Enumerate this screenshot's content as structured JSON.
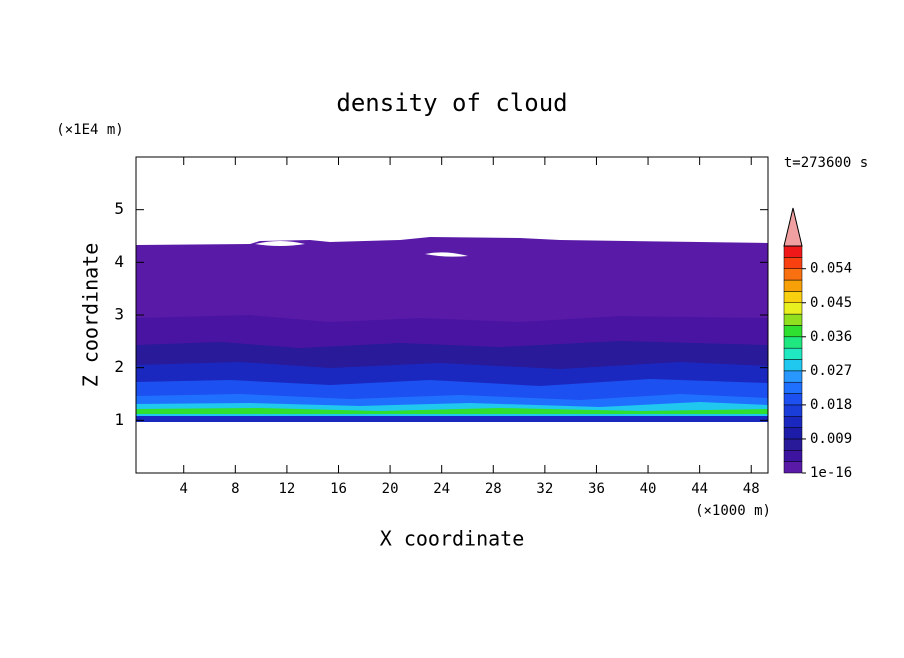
{
  "chart_data": {
    "type": "contour",
    "title": "density of cloud",
    "xlabel": "X coordinate",
    "xunit": "(×1000 m)",
    "ylabel": "Z coordinate",
    "yunit": "(×1E4 m)",
    "annotation": "t=273600 s",
    "xlim": [
      0.3,
      49.3
    ],
    "xticks": [
      4,
      8,
      12,
      16,
      20,
      24,
      28,
      32,
      36,
      40,
      44,
      48
    ],
    "ylim": [
      0,
      6
    ],
    "yticks": [
      1,
      2,
      3,
      4,
      5
    ],
    "colorbar": {
      "lim": [
        1e-16,
        0.06
      ],
      "ticks": [
        1e-16,
        0.009,
        0.018,
        0.027,
        0.036,
        0.045,
        0.054
      ],
      "colors": [
        "#5a1aa8",
        "#3c14a0",
        "#281a98",
        "#1c1ca8",
        "#1a28c0",
        "#1a3cd8",
        "#1c50f0",
        "#2070ff",
        "#2898ff",
        "#20c8f0",
        "#20e8c0",
        "#20e880",
        "#30e030",
        "#90e020",
        "#e8f020",
        "#f8d010",
        "#f8a008",
        "#f87010",
        "#f84010",
        "#f01818"
      ],
      "extend_color": "#f0a0a0"
    }
  }
}
